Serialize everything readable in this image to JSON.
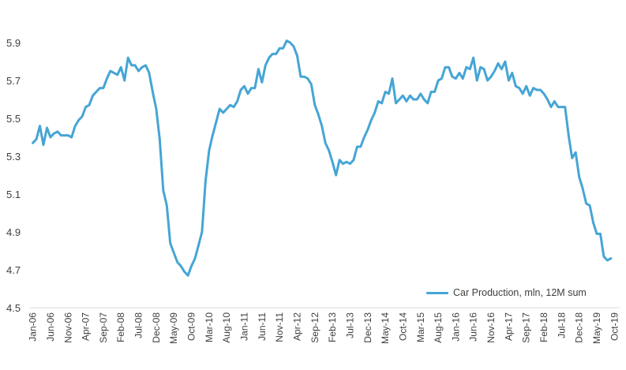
{
  "chart_data": {
    "type": "line",
    "title": "",
    "xlabel": "",
    "ylabel": "",
    "ylim": [
      4.5,
      6.0
    ],
    "y_ticks": [
      "4.5",
      "4.7",
      "4.9",
      "5.1",
      "5.3",
      "5.5",
      "5.7",
      "5.9"
    ],
    "x_ticks": [
      "Jan-06",
      "Jun-06",
      "Nov-06",
      "Apr-07",
      "Sep-07",
      "Feb-08",
      "Jul-08",
      "Dec-08",
      "May-09",
      "Oct-09",
      "Mar-10",
      "Aug-10",
      "Jan-11",
      "Jun-11",
      "Nov-11",
      "Apr-12",
      "Sep-12",
      "Feb-13",
      "Jul-13",
      "Dec-13",
      "May-14",
      "Oct-14",
      "Mar-15",
      "Aug-15",
      "Jan-16",
      "Jun-16",
      "Nov-16",
      "Apr-17",
      "Sep-17",
      "Feb-18",
      "Jul-18",
      "Dec-18",
      "May-19",
      "Oct-19"
    ],
    "grid": false,
    "legend_position": "bottom-right",
    "series": [
      {
        "name": "Car Production, mln, 12M sum",
        "color": "#45A5D5",
        "values": [
          5.37,
          5.39,
          5.46,
          5.36,
          5.45,
          5.4,
          5.42,
          5.43,
          5.41,
          5.41,
          5.41,
          5.4,
          5.46,
          5.49,
          5.51,
          5.56,
          5.57,
          5.62,
          5.64,
          5.66,
          5.66,
          5.71,
          5.75,
          5.74,
          5.73,
          5.77,
          5.7,
          5.82,
          5.78,
          5.78,
          5.75,
          5.77,
          5.78,
          5.74,
          5.64,
          5.55,
          5.39,
          5.12,
          5.04,
          4.84,
          4.79,
          4.74,
          4.72,
          4.69,
          4.67,
          4.72,
          4.76,
          4.83,
          4.9,
          5.17,
          5.33,
          5.41,
          5.48,
          5.55,
          5.53,
          5.55,
          5.57,
          5.56,
          5.59,
          5.65,
          5.67,
          5.63,
          5.66,
          5.66,
          5.76,
          5.69,
          5.78,
          5.82,
          5.84,
          5.84,
          5.87,
          5.87,
          5.91,
          5.9,
          5.88,
          5.83,
          5.72,
          5.72,
          5.71,
          5.68,
          5.57,
          5.52,
          5.46,
          5.37,
          5.33,
          5.27,
          5.2,
          5.28,
          5.26,
          5.27,
          5.26,
          5.28,
          5.35,
          5.35,
          5.4,
          5.44,
          5.49,
          5.53,
          5.59,
          5.58,
          5.64,
          5.63,
          5.71,
          5.58,
          5.6,
          5.62,
          5.59,
          5.62,
          5.6,
          5.6,
          5.63,
          5.6,
          5.58,
          5.64,
          5.64,
          5.7,
          5.71,
          5.77,
          5.77,
          5.72,
          5.71,
          5.74,
          5.71,
          5.77,
          5.76,
          5.82,
          5.7,
          5.77,
          5.76,
          5.7,
          5.72,
          5.75,
          5.79,
          5.76,
          5.8,
          5.7,
          5.74,
          5.67,
          5.66,
          5.63,
          5.67,
          5.62,
          5.66,
          5.65,
          5.65,
          5.63,
          5.6,
          5.56,
          5.59,
          5.56,
          5.56,
          5.56,
          5.41,
          5.29,
          5.32,
          5.19,
          5.13,
          5.05,
          5.04,
          4.95,
          4.89,
          4.89,
          4.77,
          4.75,
          4.76
        ]
      }
    ]
  }
}
